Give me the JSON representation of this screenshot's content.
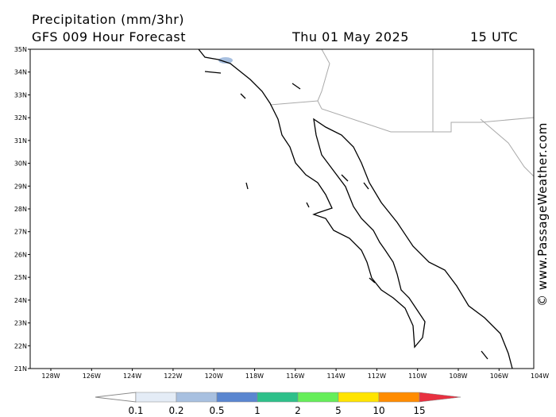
{
  "header": {
    "title": "Precipitation (mm/3hr)",
    "subtitle": "GFS 009 Hour Forecast",
    "date": "Thu 01 May 2025",
    "time": "15 UTC"
  },
  "map": {
    "lat_labels": [
      "35N",
      "34N",
      "33N",
      "32N",
      "31N",
      "30N",
      "29N",
      "28N",
      "27N",
      "26N",
      "25N",
      "24N",
      "23N",
      "22N",
      "21N"
    ],
    "lon_labels": [
      "128W",
      "126W",
      "124W",
      "122W",
      "120W",
      "118W",
      "116W",
      "114W",
      "112W",
      "110W",
      "108W",
      "106W",
      "104W"
    ]
  },
  "colorbar": {
    "labels": [
      "0.1",
      "0.2",
      "0.5",
      "1",
      "2",
      "5",
      "10",
      "15"
    ],
    "colors": [
      "#ffffff",
      "#e4ecf6",
      "#a8c0e0",
      "#5a86d0",
      "#2ec08a",
      "#66ee5a",
      "#ffe400",
      "#ff8c00",
      "#e83040"
    ]
  },
  "watermark": "© www.PassageWeather.com"
}
